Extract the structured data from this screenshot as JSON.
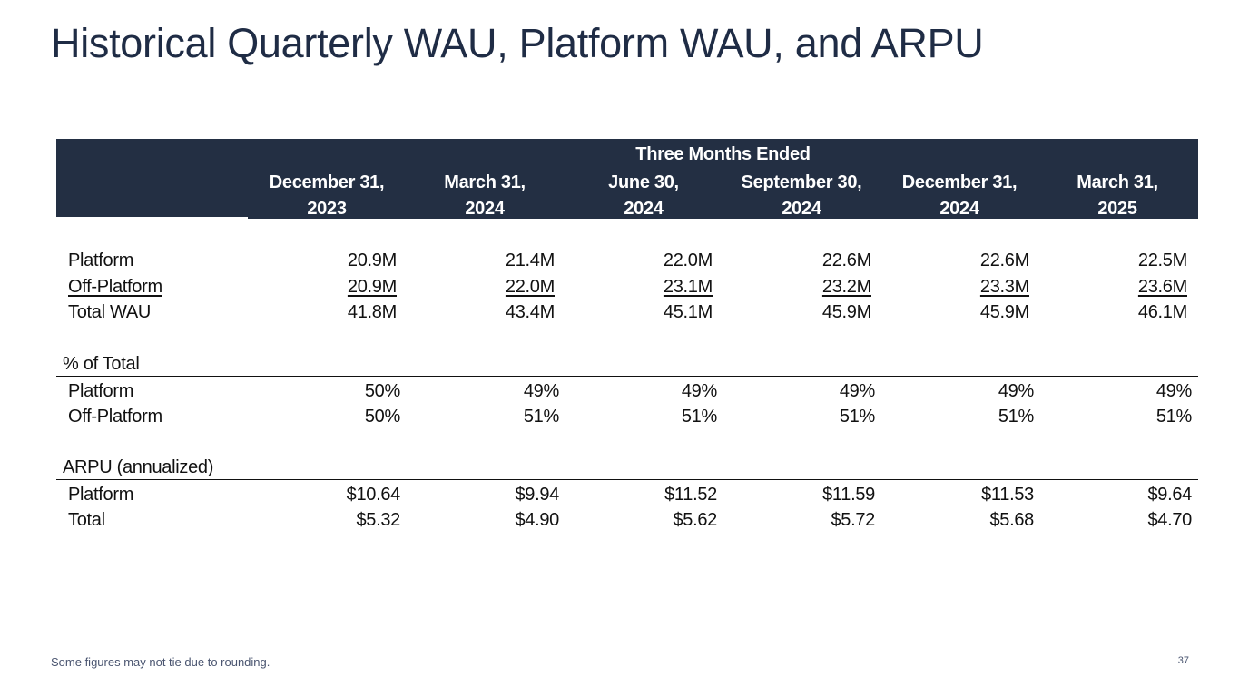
{
  "title": "Historical Quarterly WAU, Platform WAU, and ARPU",
  "table": {
    "super_header": "Three Months Ended",
    "columns": [
      {
        "line1": "December 31,",
        "line2": "2023"
      },
      {
        "line1": "March 31,",
        "line2": "2024"
      },
      {
        "line1": "June 30,",
        "line2": "2024"
      },
      {
        "line1": "September 30,",
        "line2": "2024"
      },
      {
        "line1": "December 31,",
        "line2": "2024"
      },
      {
        "line1": "March 31,",
        "line2": "2025"
      }
    ],
    "wau_rows": [
      {
        "label": "Platform",
        "values": [
          "20.9M",
          "21.4M",
          "22.0M",
          "22.6M",
          "22.6M",
          "22.5M"
        ]
      },
      {
        "label": "Off-Platform",
        "values": [
          "20.9M",
          "22.0M",
          "23.1M",
          "23.2M",
          "23.3M",
          "23.6M"
        ]
      },
      {
        "label": "Total WAU",
        "values": [
          "41.8M",
          "43.4M",
          "45.1M",
          "45.9M",
          "45.9M",
          "46.1M"
        ]
      }
    ],
    "pct_section": {
      "heading": "% of Total",
      "rows": [
        {
          "label": "Platform",
          "values": [
            "50%",
            "49%",
            "49%",
            "49%",
            "49%",
            "49%"
          ]
        },
        {
          "label": "Off-Platform",
          "values": [
            "50%",
            "51%",
            "51%",
            "51%",
            "51%",
            "51%"
          ]
        }
      ]
    },
    "arpu_section": {
      "heading": "ARPU (annualized)",
      "rows": [
        {
          "label": "Platform",
          "values": [
            "$10.64",
            "$9.94",
            "$11.52",
            "$11.59",
            "$11.53",
            "$9.64"
          ]
        },
        {
          "label": "Total",
          "values": [
            "$5.32",
            "$4.90",
            "$5.62",
            "$5.72",
            "$5.68",
            "$4.70"
          ]
        }
      ]
    }
  },
  "footnote": "Some figures may not tie due to rounding.",
  "page_number": "37"
}
